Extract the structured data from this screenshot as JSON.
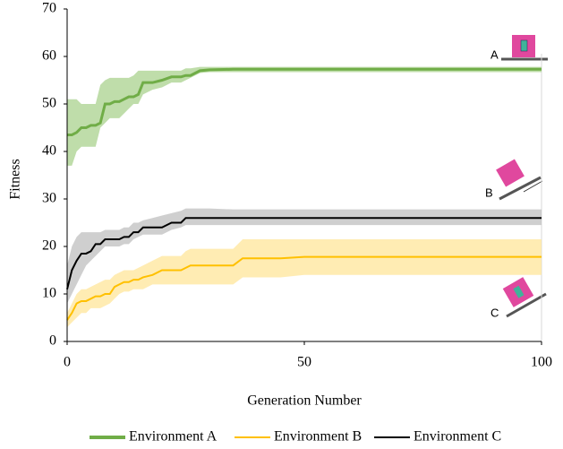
{
  "chart_data": {
    "type": "line",
    "y_label": "Fitness",
    "x_label": "Generation Number",
    "annotations": [
      "A",
      "B",
      "C"
    ],
    "x": [
      0,
      1,
      2,
      3,
      4,
      5,
      6,
      7,
      8,
      9,
      10,
      11,
      12,
      13,
      14,
      15,
      16,
      18,
      20,
      22,
      24,
      25,
      26,
      28,
      30,
      35,
      37,
      40,
      45,
      50,
      60,
      70,
      80,
      90,
      100
    ],
    "xlim": [
      0,
      100
    ],
    "xticks": [
      0,
      50,
      100
    ],
    "ylim": [
      0,
      70
    ],
    "yticks": [
      0,
      10,
      20,
      30,
      40,
      50,
      60,
      70
    ],
    "grid": false,
    "legend": "bottom",
    "series": [
      {
        "name": "Environment A",
        "color": "#70ad47",
        "band_color": "#a9d18e",
        "values": [
          43.5,
          43.5,
          44,
          45,
          45,
          45.5,
          45.5,
          46,
          50,
          50,
          50.5,
          50.5,
          51,
          51.5,
          51.5,
          52,
          54.5,
          54.5,
          55,
          55.7,
          55.7,
          56,
          56,
          57,
          57.2,
          57.3,
          57.3,
          57.3,
          57.3,
          57.3,
          57.3,
          57.3,
          57.3,
          57.3,
          57.3
        ],
        "lower": [
          37,
          37,
          40,
          41,
          41,
          41,
          41,
          45,
          46,
          47,
          47,
          47,
          48,
          49,
          50,
          50,
          52,
          53,
          53.5,
          54.5,
          54.5,
          55,
          55.5,
          56.5,
          56.7,
          56.7,
          56.7,
          56.7,
          56.7,
          56.7,
          56.7,
          56.7,
          56.7,
          56.7,
          56.7
        ],
        "upper": [
          51,
          51,
          51,
          50,
          50,
          50,
          50,
          54,
          55,
          55.5,
          55.5,
          55.5,
          55.5,
          55.5,
          56,
          57,
          57,
          57,
          57,
          57,
          57,
          57.5,
          57.5,
          57.8,
          57.8,
          57.8,
          57.8,
          57.8,
          57.8,
          57.8,
          57.8,
          57.8,
          57.8,
          57.8,
          57.8
        ]
      },
      {
        "name": "Environment B",
        "color": "#ffc000",
        "band_color": "#ffe699",
        "values": [
          4.5,
          6,
          8,
          8.5,
          8.5,
          9,
          9.5,
          9.5,
          10,
          10,
          11.5,
          12,
          12.5,
          12.5,
          13,
          13,
          13.5,
          14,
          15,
          15,
          15,
          15.5,
          16,
          16,
          16,
          16,
          17.5,
          17.5,
          17.5,
          17.8,
          17.8,
          17.8,
          17.8,
          17.8,
          17.8
        ],
        "lower": [
          3,
          4,
          5,
          6,
          6,
          7,
          7,
          7,
          7.5,
          8,
          9,
          10,
          10.5,
          10.5,
          11,
          11,
          11,
          12,
          12,
          12,
          12,
          12,
          12,
          12,
          12,
          12,
          13.5,
          13.5,
          13.5,
          14,
          14,
          14,
          14,
          14,
          14
        ],
        "upper": [
          6,
          8,
          10,
          11,
          11,
          11.5,
          12,
          12.5,
          13,
          13,
          14,
          14.5,
          15,
          15,
          15,
          15.5,
          16,
          17,
          18,
          18,
          18,
          19,
          19.5,
          19.5,
          19.5,
          19.5,
          21.5,
          21.5,
          21.5,
          21.5,
          21.5,
          21.5,
          21.5,
          21.5,
          21.5
        ]
      },
      {
        "name": "Environment C",
        "color": "#000000",
        "band_color": "#bfbfbf",
        "values": [
          11,
          15,
          17,
          18.5,
          18.5,
          19,
          20.5,
          20.5,
          21.5,
          21.5,
          21.5,
          21.5,
          22,
          22,
          23,
          23,
          24,
          24,
          24,
          25,
          25,
          26,
          26,
          26,
          26,
          26,
          26,
          26,
          26,
          26,
          26,
          26,
          26,
          26,
          26
        ],
        "lower": [
          8,
          10,
          12,
          14,
          16,
          17,
          18,
          19,
          20,
          20,
          20,
          20,
          20.5,
          20.5,
          21.5,
          22,
          22.5,
          22.5,
          22.5,
          23.5,
          24,
          24.5,
          24.5,
          24.5,
          24.5,
          24.5,
          24.5,
          24.5,
          24.5,
          24.5,
          24.5,
          24.5,
          24.5,
          24.5,
          24.5
        ],
        "upper": [
          16,
          20,
          22,
          23,
          23,
          23,
          23,
          23,
          23.5,
          23.5,
          23.5,
          23.5,
          24,
          24,
          25,
          25,
          25.5,
          26,
          26.5,
          27,
          27.5,
          28,
          28,
          28,
          28,
          27.8,
          27.8,
          27.8,
          27.8,
          27.8,
          27.8,
          27.8,
          27.8,
          27.8,
          27.8
        ]
      }
    ]
  }
}
